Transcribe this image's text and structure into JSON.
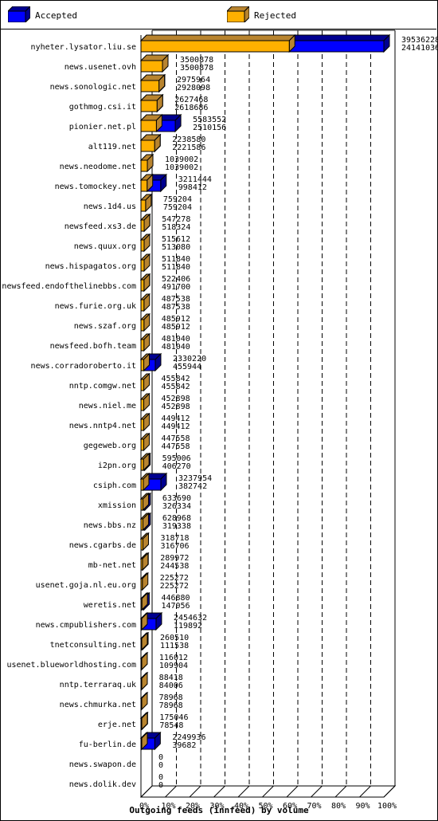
{
  "legend": {
    "accepted_label": "Accepted",
    "rejected_label": "Rejected"
  },
  "colors": {
    "accepted": "#0000ff",
    "rejected": "#ffb000",
    "rejected_side": "#b8842f",
    "accepted_side": "#000090",
    "grid": "#000000"
  },
  "chart_data": {
    "type": "bar",
    "orientation": "horizontal",
    "title": "Outgoing feeds (innfeed) by volume",
    "x_tick_labels": [
      "0%",
      "10%",
      "20%",
      "30%",
      "40%",
      "50%",
      "60%",
      "70%",
      "80%",
      "90%",
      "100%"
    ],
    "xlim": [
      0,
      100
    ],
    "grid": true,
    "legend_position": "top",
    "categories": [
      "nyheter.lysator.liu.se",
      "news.usenet.ovh",
      "news.sonologic.net",
      "gothmog.csi.it",
      "pionier.net.pl",
      "alt119.net",
      "news.neodome.net",
      "news.tomockey.net",
      "news.1d4.us",
      "newsfeed.xs3.de",
      "news.quux.org",
      "news.hispagatos.org",
      "newsfeed.endofthelinebbs.com",
      "news.furie.org.uk",
      "news.szaf.org",
      "newsfeed.bofh.team",
      "news.corradoroberto.it",
      "nntp.comgw.net",
      "news.niel.me",
      "news.nntp4.net",
      "gegeweb.org",
      "i2pn.org",
      "csiph.com",
      "xmission",
      "news.bbs.nz",
      "news.cgarbs.de",
      "mb-net.net",
      "usenet.goja.nl.eu.org",
      "weretis.net",
      "news.cmpublishers.com",
      "tnetconsulting.net",
      "usenet.blueworldhosting.com",
      "nntp.terraraq.uk",
      "news.chmurka.net",
      "erje.net",
      "fu-berlin.de",
      "news.swapon.de",
      "news.dolik.dev"
    ],
    "series": [
      {
        "name": "Accepted",
        "values": [
          39536228,
          3500878,
          2975964,
          2627468,
          5583552,
          2238580,
          1039002,
          3211444,
          759204,
          547278,
          515612,
          511840,
          522406,
          487538,
          485912,
          481040,
          2330220,
          455842,
          452898,
          449412,
          447558,
          595006,
          3237954,
          633690,
          628968,
          318718,
          289972,
          225272,
          446880,
          2454632,
          260510,
          116012,
          88418,
          78968,
          175046,
          2249936,
          0,
          0
        ]
      },
      {
        "name": "Rejected",
        "values": [
          24141036,
          3500878,
          2928098,
          2618686,
          2510156,
          2221586,
          1039002,
          998412,
          759204,
          518324,
          513080,
          511840,
          491700,
          487538,
          485912,
          481040,
          455944,
          455842,
          452898,
          449412,
          447558,
          406270,
          382742,
          326334,
          319338,
          316706,
          244538,
          225272,
          147056,
          119892,
          111538,
          109904,
          84006,
          78968,
          78548,
          39682,
          0,
          0
        ]
      }
    ]
  }
}
